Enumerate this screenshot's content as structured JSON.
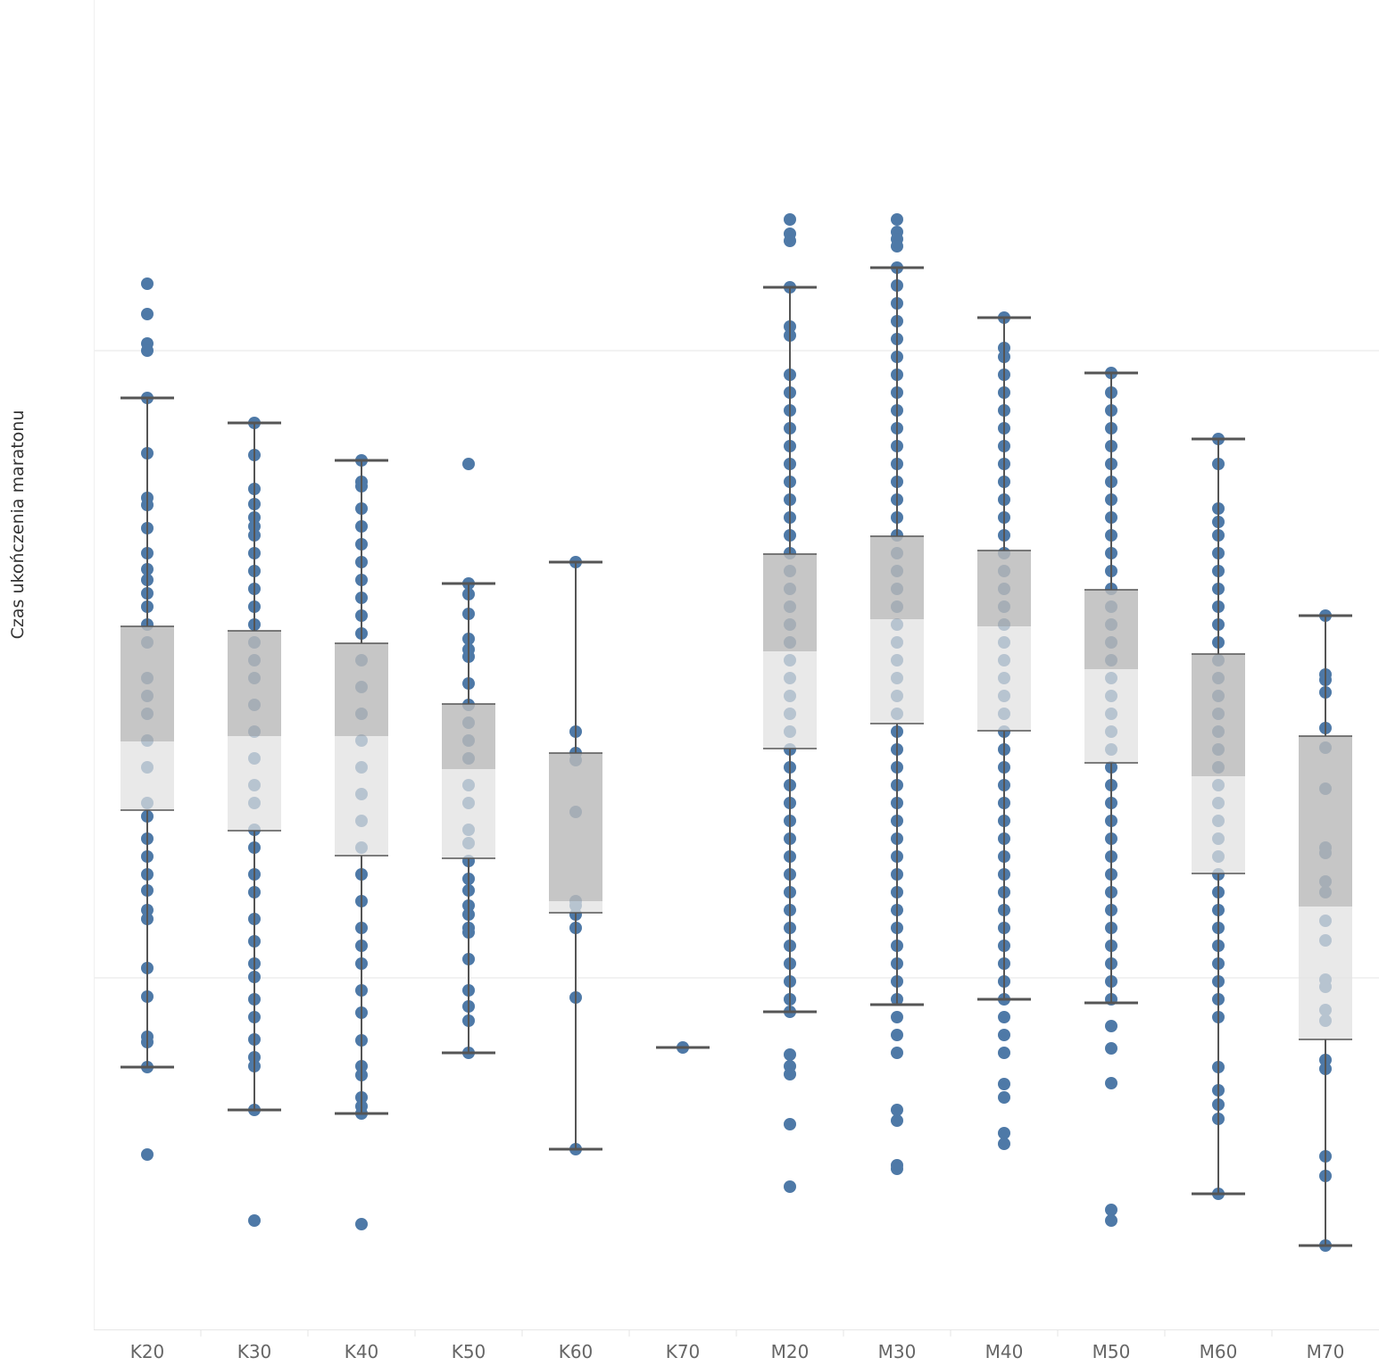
{
  "chart_data": {
    "type": "box",
    "title": "",
    "xlabel": "",
    "ylabel": "Czas ukończenia maratonu",
    "ylim": [
      0,
      149
    ],
    "gridlines": [
      39.4,
      109.7
    ],
    "grid": true,
    "y_units_note": "relative units (no y tick labels shown)",
    "colors": {
      "point": "#4e79a7",
      "box_upper": "#bababa",
      "box_lower": "#e0e0e0",
      "whisker": "#555555",
      "grid": "#eeeeee"
    },
    "categories": [
      "K20",
      "K30",
      "K40",
      "K50",
      "K60",
      "K70",
      "M20",
      "M30",
      "M40",
      "M50",
      "M60",
      "M70"
    ],
    "boxes": [
      {
        "whisker_high": 104.4,
        "q3": 78.8,
        "median": 65.9,
        "q1": 58.2,
        "whisker_low": 29.4
      },
      {
        "whisker_high": 101.6,
        "q3": 78.3,
        "median": 66.5,
        "q1": 55.9,
        "whisker_low": 24.6
      },
      {
        "whisker_high": 97.4,
        "q3": 76.9,
        "median": 66.5,
        "q1": 53.1,
        "whisker_low": 24.2
      },
      {
        "whisker_high": 83.6,
        "q3": 70.1,
        "median": 62.8,
        "q1": 52.8,
        "whisker_low": 31.0
      },
      {
        "whisker_high": 86.0,
        "q3": 64.6,
        "median": 48.0,
        "q1": 46.7,
        "whisker_low": 20.2
      },
      {
        "whisker_high": 31.6,
        "q3": 31.6,
        "median": 31.6,
        "q1": 31.6,
        "whisker_low": 31.6
      },
      {
        "whisker_high": 116.8,
        "q3": 86.9,
        "median": 76.0,
        "q1": 65.1,
        "whisker_low": 35.6
      },
      {
        "whisker_high": 119.0,
        "q3": 88.9,
        "median": 79.6,
        "q1": 67.9,
        "whisker_low": 36.4
      },
      {
        "whisker_high": 113.4,
        "q3": 87.3,
        "median": 78.8,
        "q1": 67.1,
        "whisker_low": 37.0
      },
      {
        "whisker_high": 107.2,
        "q3": 82.9,
        "median": 74.0,
        "q1": 63.5,
        "whisker_low": 36.6
      },
      {
        "whisker_high": 99.8,
        "q3": 75.7,
        "median": 62.0,
        "q1": 51.1,
        "whisker_low": 15.2
      },
      {
        "whisker_high": 80.0,
        "q3": 66.5,
        "median": 47.4,
        "q1": 32.5,
        "whisker_low": 9.4
      }
    ],
    "points": [
      [
        117.2,
        113.8,
        110.5,
        109.7,
        104.4,
        98.2,
        93.2,
        92.4,
        89.8,
        87,
        85.2,
        84,
        82.5,
        81,
        79,
        77,
        73,
        71,
        69,
        66,
        63,
        59,
        57.5,
        55,
        53,
        51,
        49.2,
        47,
        46,
        40.5,
        37.3,
        32.8,
        32.2,
        29.4,
        19.6
      ],
      [
        101.6,
        98,
        94.2,
        92.5,
        91,
        90,
        89,
        87,
        85,
        83,
        81,
        79,
        77,
        75,
        73,
        70,
        67,
        64,
        61,
        59,
        56,
        54,
        51,
        49,
        46,
        43.5,
        41,
        39.5,
        37,
        35,
        32.5,
        30.5,
        29.5,
        24.6,
        12.2
      ],
      [
        97.4,
        95,
        94.5,
        92,
        90,
        88,
        86,
        84,
        82,
        80,
        78,
        75,
        72,
        69,
        66,
        63,
        60,
        57,
        54,
        51,
        48,
        45,
        43,
        41,
        38,
        35.5,
        32.4,
        29.5,
        28.5,
        26,
        25,
        24.2,
        11.8
      ],
      [
        97,
        83.6,
        82.4,
        80.2,
        77.4,
        76.2,
        75.4,
        72.4,
        70,
        68,
        66,
        64,
        61,
        59,
        56,
        54.5,
        52.5,
        50.5,
        49.2,
        47.5,
        46.5,
        45,
        44.5,
        41.5,
        38,
        36.2,
        34.6,
        31
      ],
      [
        86,
        67,
        64.6,
        63.8,
        58,
        48,
        47.5,
        46.5,
        45,
        37.2,
        20.2
      ],
      [
        31.6
      ],
      [
        124.4,
        122.8,
        122,
        116.8,
        112.4,
        111.4,
        107,
        105,
        103,
        101,
        99,
        97,
        95,
        93,
        91,
        89,
        87,
        85,
        83,
        81,
        79,
        77,
        75,
        73,
        71,
        69,
        67,
        65,
        63,
        61,
        59,
        57,
        55,
        53,
        51,
        49,
        47,
        45,
        43,
        41,
        39,
        37,
        35.6,
        30.8,
        29.5,
        28.6,
        23,
        16
      ],
      [
        124.4,
        123,
        122.2,
        121.4,
        119,
        117,
        115,
        113,
        111,
        109,
        107,
        105,
        103,
        101,
        99,
        97,
        95,
        93,
        91,
        89,
        87,
        85,
        83,
        81,
        79,
        77,
        75,
        73,
        71,
        69,
        67,
        65,
        63,
        61,
        59,
        57,
        55,
        53,
        51,
        49,
        47,
        45,
        43,
        41,
        39,
        37,
        35,
        33,
        31,
        24.6,
        23.4,
        18.4,
        18
      ],
      [
        113.4,
        110,
        109,
        107,
        105,
        103,
        101,
        99,
        97,
        95,
        93,
        91,
        89,
        87,
        85,
        83,
        81,
        79,
        77,
        75,
        73,
        71,
        69,
        67,
        65,
        63,
        61,
        59,
        57,
        55,
        53,
        51,
        49,
        47,
        45,
        43,
        41,
        39,
        37,
        35,
        33,
        31,
        27.5,
        26,
        22,
        20.8
      ],
      [
        107.2,
        105,
        103,
        101,
        99,
        97,
        95,
        93,
        91,
        89,
        87,
        85,
        83,
        81,
        79,
        77,
        75,
        73,
        71,
        69,
        67,
        65,
        63,
        61,
        59,
        57,
        55,
        53,
        51,
        49,
        47,
        45,
        43,
        41,
        39,
        37,
        34,
        31.5,
        27.6,
        13.4,
        12.2
      ],
      [
        99.8,
        97,
        92,
        90.5,
        89,
        87,
        85,
        83,
        81,
        79,
        77,
        75,
        73,
        71,
        69,
        67,
        65,
        63,
        61,
        59,
        57,
        55,
        53,
        51,
        49,
        47,
        45,
        43,
        41,
        39,
        37,
        35,
        29.4,
        26.8,
        25.2,
        23.6,
        15.2
      ],
      [
        80,
        73.4,
        72.8,
        71.4,
        67.4,
        65.2,
        60.6,
        54,
        53.4,
        50.2,
        49,
        45.8,
        43.6,
        39.2,
        38.4,
        35.8,
        34.6,
        30.2,
        29.2,
        19.4,
        17.2,
        9.4
      ]
    ]
  }
}
